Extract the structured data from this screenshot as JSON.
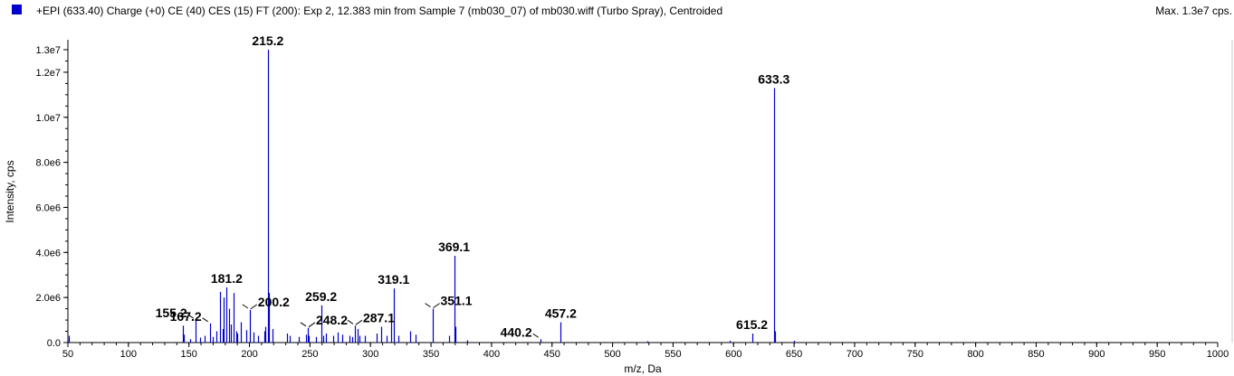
{
  "header": {
    "title": "+EPI (633.40) Charge (+0) CE (40) CES (15) FT (200): Exp 2, 12.383 min from Sample 7 (mb030_07) of mb030.wiff (Turbo Spray), Centroided",
    "max_label": "Max. 1.3e7 cps."
  },
  "colors": {
    "series": "#0000cc",
    "axis": "#000000",
    "background": "#ffffff"
  },
  "chart_data": {
    "type": "bar",
    "xlabel": "m/z, Da",
    "ylabel": "Intensity, cps",
    "xlim": [
      50,
      1000
    ],
    "ylim": [
      0,
      13000000
    ],
    "x_ticks": [
      50,
      100,
      150,
      200,
      250,
      300,
      350,
      400,
      450,
      500,
      550,
      600,
      650,
      700,
      750,
      800,
      850,
      900,
      950,
      1000
    ],
    "y_ticks": [
      {
        "value": 0,
        "label": "0.0"
      },
      {
        "value": 2000000,
        "label": "2.0e6"
      },
      {
        "value": 4000000,
        "label": "4.0e6"
      },
      {
        "value": 6000000,
        "label": "6.0e6"
      },
      {
        "value": 8000000,
        "label": "8.0e6"
      },
      {
        "value": 10000000,
        "label": "1.0e7"
      },
      {
        "value": 12000000,
        "label": "1.2e7"
      },
      {
        "value": 13000000,
        "label": "1.3e7"
      }
    ],
    "peaks": [
      [
        50.5,
        300000
      ],
      [
        51.0,
        180000
      ],
      [
        145.0,
        750000
      ],
      [
        146.0,
        350000
      ],
      [
        151.0,
        150000
      ],
      [
        155.2,
        1000000
      ],
      [
        159.0,
        220000
      ],
      [
        163.0,
        300000
      ],
      [
        167.2,
        850000
      ],
      [
        170.0,
        250000
      ],
      [
        173.0,
        500000
      ],
      [
        176.0,
        2250000
      ],
      [
        178.0,
        600000
      ],
      [
        179.0,
        2000000
      ],
      [
        181.2,
        2450000
      ],
      [
        183.0,
        1500000
      ],
      [
        185.0,
        800000
      ],
      [
        187.0,
        2200000
      ],
      [
        189.0,
        500000
      ],
      [
        190.0,
        400000
      ],
      [
        193.0,
        900000
      ],
      [
        197.0,
        550000
      ],
      [
        200.2,
        1450000
      ],
      [
        203.0,
        450000
      ],
      [
        207.0,
        300000
      ],
      [
        212.0,
        500000
      ],
      [
        213.0,
        700000
      ],
      [
        215.2,
        13000000
      ],
      [
        216.2,
        2200000
      ],
      [
        219.0,
        600000
      ],
      [
        231.0,
        400000
      ],
      [
        233.0,
        300000
      ],
      [
        241.0,
        250000
      ],
      [
        247.0,
        350000
      ],
      [
        248.2,
        650000
      ],
      [
        249.0,
        300000
      ],
      [
        255.0,
        250000
      ],
      [
        259.2,
        1650000
      ],
      [
        261.0,
        300000
      ],
      [
        263.0,
        400000
      ],
      [
        269.0,
        300000
      ],
      [
        273.0,
        450000
      ],
      [
        277.0,
        350000
      ],
      [
        283.0,
        300000
      ],
      [
        285.0,
        250000
      ],
      [
        287.1,
        750000
      ],
      [
        289.0,
        600000
      ],
      [
        291.0,
        300000
      ],
      [
        295.0,
        300000
      ],
      [
        305.0,
        400000
      ],
      [
        309.0,
        700000
      ],
      [
        313.0,
        300000
      ],
      [
        317.0,
        1000000
      ],
      [
        319.1,
        2400000
      ],
      [
        323.0,
        300000
      ],
      [
        333.0,
        500000
      ],
      [
        337.0,
        350000
      ],
      [
        351.1,
        1500000
      ],
      [
        365.0,
        300000
      ],
      [
        369.1,
        3850000
      ],
      [
        370.1,
        700000
      ],
      [
        380.0,
        100000
      ],
      [
        440.2,
        150000
      ],
      [
        457.2,
        900000
      ],
      [
        529.0,
        60000
      ],
      [
        597.0,
        80000
      ],
      [
        615.2,
        400000
      ],
      [
        633.3,
        11300000
      ],
      [
        634.3,
        500000
      ],
      [
        650.0,
        80000
      ]
    ],
    "annotations": [
      {
        "label": "215.2",
        "x": 215.2
      },
      {
        "label": "633.3",
        "x": 633.3
      },
      {
        "label": "369.1",
        "x": 369.1
      },
      {
        "label": "319.1",
        "x": 319.1
      },
      {
        "label": "181.2",
        "x": 181.2
      },
      {
        "label": "155.2",
        "x": 155.2,
        "leader": true
      },
      {
        "label": "167.2",
        "x": 167.2,
        "leader": true
      },
      {
        "label": "200.2",
        "x": 200.2,
        "leader": true
      },
      {
        "label": "259.2",
        "x": 259.2
      },
      {
        "label": "248.2",
        "x": 248.2,
        "leader": true
      },
      {
        "label": "287.1",
        "x": 287.1,
        "leader": true
      },
      {
        "label": "351.1",
        "x": 351.1,
        "leader": true
      },
      {
        "label": "440.2",
        "x": 440.2,
        "leader": true
      },
      {
        "label": "457.2",
        "x": 457.2
      },
      {
        "label": "615.2",
        "x": 615.2
      }
    ]
  }
}
